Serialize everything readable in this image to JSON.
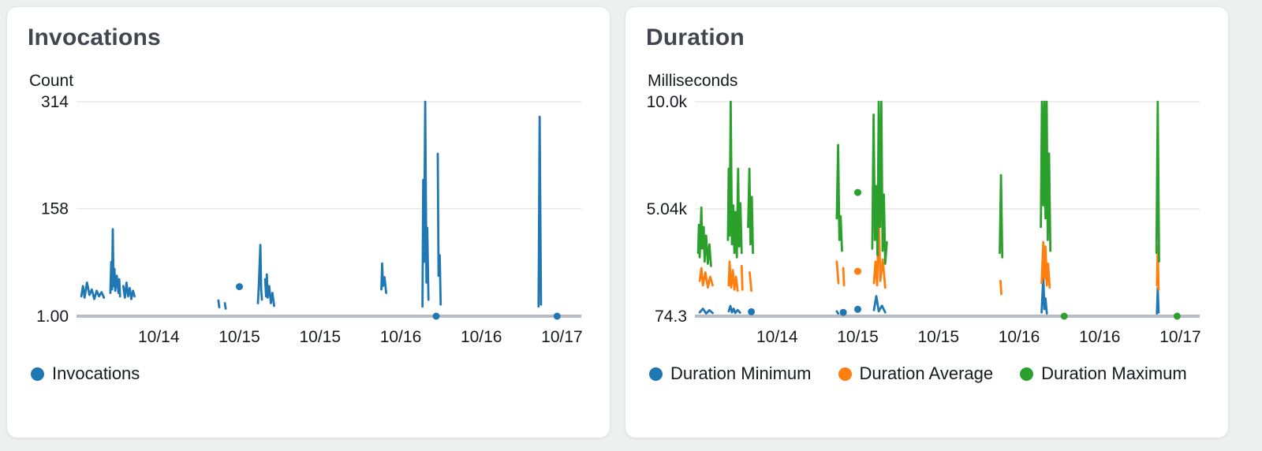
{
  "chart_data": [
    {
      "type": "line",
      "title": "Invocations",
      "ylabel": "Count",
      "ylim": [
        1,
        314
      ],
      "xlim": [
        13.49,
        16.62
      ],
      "grid": "horizontal",
      "legend_position": "bottom",
      "yticks": [
        {
          "value": 314,
          "label": "314"
        },
        {
          "value": 158,
          "label": "158"
        },
        {
          "value": 1,
          "label": "1.00"
        }
      ],
      "xticks": [
        {
          "value": 14.0,
          "label": "10/14"
        },
        {
          "value": 14.5,
          "label": "10/15"
        },
        {
          "value": 15.0,
          "label": "10/15"
        },
        {
          "value": 15.5,
          "label": "10/16"
        },
        {
          "value": 16.0,
          "label": "10/16"
        },
        {
          "value": 16.5,
          "label": "10/17"
        }
      ],
      "series": [
        {
          "name": "Invocations",
          "color": "#1f77b4",
          "segments": [
            [
              [
                13.52,
                30
              ],
              [
                13.53,
                45
              ],
              [
                13.54,
                28
              ],
              [
                13.555,
                50
              ],
              [
                13.57,
                32
              ],
              [
                13.585,
                40
              ],
              [
                13.6,
                26
              ],
              [
                13.615,
                38
              ],
              [
                13.63,
                30
              ],
              [
                13.645,
                36
              ],
              [
                13.66,
                28
              ]
            ],
            [
              [
                13.7,
                35
              ],
              [
                13.705,
                80
              ],
              [
                13.71,
                40
              ],
              [
                13.715,
                128
              ],
              [
                13.72,
                45
              ],
              [
                13.725,
                70
              ],
              [
                13.73,
                38
              ],
              [
                13.74,
                60
              ],
              [
                13.75,
                35
              ],
              [
                13.755,
                55
              ],
              [
                13.76,
                30
              ]
            ],
            [
              [
                13.78,
                45
              ],
              [
                13.79,
                28
              ],
              [
                13.8,
                50
              ],
              [
                13.81,
                30
              ],
              [
                13.82,
                42
              ],
              [
                13.83,
                26
              ],
              [
                13.84,
                38
              ],
              [
                13.85,
                30
              ]
            ],
            [
              [
                14.37,
                24
              ],
              [
                14.375,
                14
              ]
            ],
            [
              [
                14.41,
                20
              ],
              [
                14.415,
                12
              ]
            ],
            [
              [
                14.615,
                20
              ],
              [
                14.62,
                45
              ],
              [
                14.63,
                105
              ],
              [
                14.635,
                40
              ],
              [
                14.64,
                25
              ]
            ],
            [
              [
                14.66,
                55
              ],
              [
                14.665,
                30
              ],
              [
                14.67,
                62
              ],
              [
                14.675,
                28
              ],
              [
                14.685,
                45
              ],
              [
                14.695,
                20
              ],
              [
                14.705,
                35
              ],
              [
                14.715,
                16
              ]
            ],
            [
              [
                15.38,
                40
              ],
              [
                15.385,
                78
              ],
              [
                15.39,
                45
              ],
              [
                15.4,
                58
              ],
              [
                15.41,
                35
              ]
            ],
            [
              [
                15.635,
                15
              ],
              [
                15.64,
                200
              ],
              [
                15.645,
                80
              ],
              [
                15.652,
                314
              ],
              [
                15.66,
                50
              ],
              [
                15.665,
                130
              ],
              [
                15.672,
                25
              ]
            ],
            [
              [
                15.73,
                238
              ],
              [
                15.735,
                60
              ],
              [
                15.742,
                90
              ],
              [
                15.748,
                18
              ]
            ],
            [
              [
                16.355,
                15
              ],
              [
                16.362,
                292
              ],
              [
                16.37,
                18
              ]
            ]
          ],
          "dots": [
            [
              14.5,
              44
            ],
            [
              15.72,
              1
            ],
            [
              16.47,
              1
            ]
          ]
        }
      ]
    },
    {
      "type": "line",
      "title": "Duration",
      "ylabel": "Milliseconds",
      "ylim": [
        74.3,
        10000
      ],
      "xlim": [
        13.49,
        16.62
      ],
      "grid": "horizontal",
      "legend_position": "bottom",
      "yticks": [
        {
          "value": 10000,
          "label": "10.0k"
        },
        {
          "value": 5040,
          "label": "5.04k"
        },
        {
          "value": 74.3,
          "label": "74.3"
        }
      ],
      "xticks": [
        {
          "value": 14.0,
          "label": "10/14"
        },
        {
          "value": 14.5,
          "label": "10/15"
        },
        {
          "value": 15.0,
          "label": "10/15"
        },
        {
          "value": 15.5,
          "label": "10/16"
        },
        {
          "value": 16.0,
          "label": "10/16"
        },
        {
          "value": 16.5,
          "label": "10/17"
        }
      ],
      "series": [
        {
          "name": "Duration Minimum",
          "color": "#1f77b4",
          "segments": [
            [
              [
                13.52,
                250
              ],
              [
                13.54,
                420
              ],
              [
                13.56,
                200
              ],
              [
                13.58,
                350
              ],
              [
                13.6,
                220
              ]
            ],
            [
              [
                13.7,
                300
              ],
              [
                13.71,
                550
              ],
              [
                13.72,
                250
              ],
              [
                13.73,
                420
              ],
              [
                13.74,
                220
              ],
              [
                13.755,
                360
              ],
              [
                13.77,
                240
              ]
            ],
            [
              [
                14.37,
                300
              ],
              [
                14.378,
                200
              ]
            ],
            [
              [
                14.6,
                350
              ],
              [
                14.615,
                1000
              ],
              [
                14.63,
                300
              ],
              [
                14.65,
                560
              ],
              [
                14.67,
                250
              ]
            ],
            [
              [
                15.64,
                250
              ],
              [
                15.65,
                1900
              ],
              [
                15.657,
                400
              ],
              [
                15.664,
                900
              ],
              [
                15.672,
                200
              ]
            ],
            [
              [
                16.355,
                200
              ],
              [
                16.36,
                1380
              ],
              [
                16.365,
                250
              ]
            ]
          ],
          "dots": [
            [
              13.84,
              280
            ],
            [
              14.41,
              250
            ],
            [
              14.5,
              390
            ]
          ]
        },
        {
          "name": "Duration Average",
          "color": "#ff7f0e",
          "segments": [
            [
              [
                13.52,
                1700
              ],
              [
                13.53,
                2300
              ],
              [
                13.54,
                1500
              ],
              [
                13.555,
                2100
              ],
              [
                13.57,
                1400
              ],
              [
                13.585,
                1900
              ],
              [
                13.6,
                1500
              ]
            ],
            [
              [
                13.7,
                1500
              ],
              [
                13.705,
                2600
              ],
              [
                13.715,
                1400
              ],
              [
                13.725,
                2200
              ],
              [
                13.735,
                1300
              ],
              [
                13.745,
                1900
              ],
              [
                13.755,
                1250
              ]
            ],
            [
              [
                13.78,
                2400
              ],
              [
                13.785,
                1300
              ]
            ],
            [
              [
                13.83,
                2100
              ],
              [
                13.84,
                1250
              ]
            ],
            [
              [
                14.37,
                2600
              ],
              [
                14.38,
                1600
              ]
            ],
            [
              [
                14.41,
                2300
              ],
              [
                14.415,
                1500
              ]
            ],
            [
              [
                14.6,
                1600
              ],
              [
                14.61,
                2600
              ],
              [
                14.62,
                1500
              ],
              [
                14.63,
                4800
              ],
              [
                14.64,
                1700
              ],
              [
                14.655,
                2700
              ],
              [
                14.67,
                1400
              ]
            ],
            [
              [
                15.385,
                1700
              ],
              [
                15.39,
                1100
              ]
            ],
            [
              [
                15.64,
                1600
              ],
              [
                15.65,
                3500
              ],
              [
                15.657,
                1800
              ],
              [
                15.664,
                3300
              ],
              [
                15.672,
                1500
              ],
              [
                15.68,
                2500
              ],
              [
                15.69,
                1400
              ]
            ],
            [
              [
                16.355,
                1500
              ],
              [
                16.36,
                3300
              ],
              [
                16.365,
                1300
              ]
            ]
          ],
          "dots": [
            [
              14.5,
              2150
            ]
          ]
        },
        {
          "name": "Duration Maximum",
          "color": "#2ca02c",
          "segments": [
            [
              [
                13.51,
                3000
              ],
              [
                13.515,
                4300
              ],
              [
                13.52,
                2800
              ],
              [
                13.53,
                5100
              ],
              [
                13.535,
                3200
              ],
              [
                13.545,
                4200
              ],
              [
                13.55,
                2600
              ],
              [
                13.56,
                3800
              ],
              [
                13.57,
                2500
              ],
              [
                13.58,
                3400
              ],
              [
                13.59,
                2400
              ]
            ],
            [
              [
                13.695,
                3600
              ],
              [
                13.7,
                6900
              ],
              [
                13.705,
                3800
              ],
              [
                13.712,
                10000
              ],
              [
                13.72,
                3400
              ],
              [
                13.728,
                5200
              ],
              [
                13.735,
                3000
              ],
              [
                13.742,
                4900
              ],
              [
                13.75,
                2800
              ],
              [
                13.758,
                6900
              ],
              [
                13.765,
                3300
              ],
              [
                13.772,
                5300
              ],
              [
                13.78,
                3000
              ]
            ],
            [
              [
                13.82,
                4200
              ],
              [
                13.828,
                6900
              ],
              [
                13.835,
                3400
              ],
              [
                13.843,
                5600
              ],
              [
                13.85,
                3000
              ]
            ],
            [
              [
                14.37,
                4600
              ],
              [
                14.378,
                8000
              ],
              [
                14.386,
                3600
              ],
              [
                14.394,
                4700
              ],
              [
                14.402,
                3100
              ]
            ],
            [
              [
                14.59,
                3200
              ],
              [
                14.598,
                9400
              ],
              [
                14.606,
                3600
              ],
              [
                14.614,
                6100
              ],
              [
                14.622,
                2900
              ],
              [
                14.63,
                10000
              ],
              [
                14.638,
                4200
              ],
              [
                14.646,
                10000
              ],
              [
                14.654,
                3100
              ],
              [
                14.662,
                5700
              ],
              [
                14.67,
                2500
              ],
              [
                14.68,
                3500
              ]
            ],
            [
              [
                15.38,
                3000
              ],
              [
                15.388,
                6600
              ],
              [
                15.396,
                2800
              ]
            ],
            [
              [
                15.635,
                4200
              ],
              [
                15.642,
                10000
              ],
              [
                15.65,
                5200
              ],
              [
                15.657,
                10000
              ],
              [
                15.664,
                4600
              ],
              [
                15.671,
                10000
              ],
              [
                15.678,
                3600
              ],
              [
                15.686,
                7600
              ],
              [
                15.694,
                3100
              ]
            ],
            [
              [
                16.352,
                3000
              ],
              [
                16.36,
                10000
              ],
              [
                16.368,
                2600
              ]
            ]
          ],
          "dots": [
            [
              14.5,
              5800
            ],
            [
              15.78,
              74.3
            ],
            [
              16.48,
              74.3
            ]
          ]
        }
      ]
    }
  ]
}
